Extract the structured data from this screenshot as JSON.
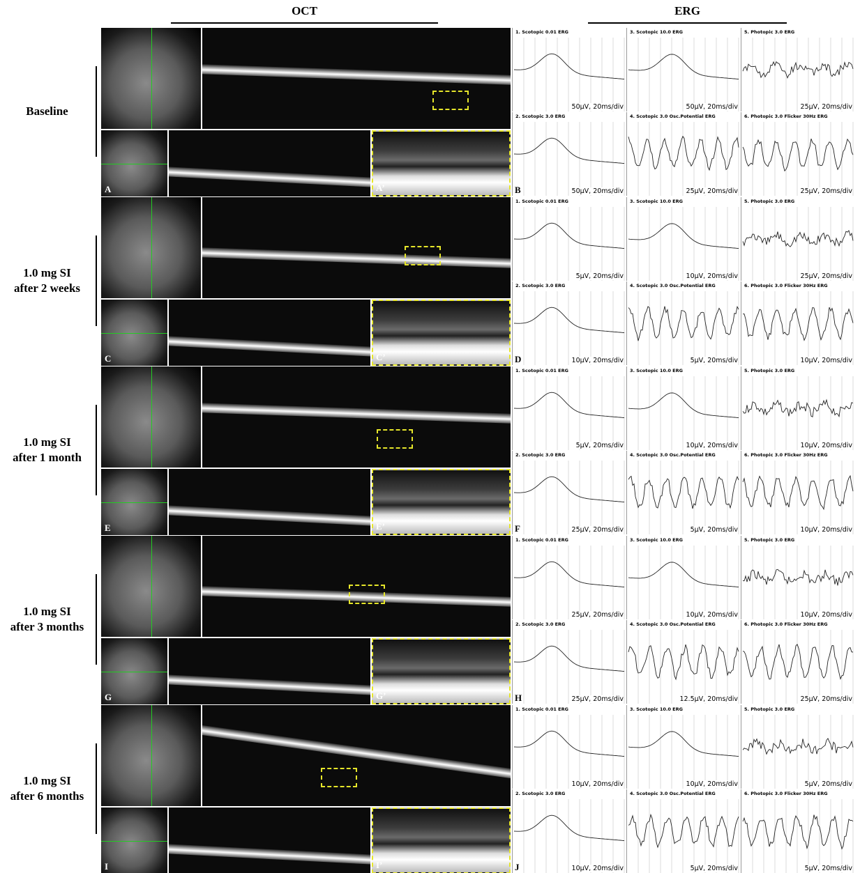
{
  "headers": {
    "oct": "OCT",
    "erg": "ERG"
  },
  "rows": [
    {
      "label": [
        "Baseline"
      ],
      "oct_letters": [
        "A",
        "A’"
      ],
      "erg_letter": "B",
      "erg_panels": [
        {
          "title": "1. Scotopic 0.01 ERG",
          "scale": "50µV, 20ms/div"
        },
        {
          "title": "3. Scotopic 10.0 ERG",
          "scale": "50µV, 20ms/div"
        },
        {
          "title": "5. Photopic 3.0 ERG",
          "scale": "25µV, 20ms/div"
        },
        {
          "title": "2. Scotopic 3.0 ERG",
          "scale": "50µV, 20ms/div"
        },
        {
          "title": "4. Scotopic 3.0 Osc.Potential ERG",
          "scale": "25µV, 20ms/div"
        },
        {
          "title": "6. Photopic 3.0 Flicker 30Hz ERG",
          "scale": "25µV, 20ms/div"
        }
      ]
    },
    {
      "label": [
        "1.0 mg SI",
        "after 2 weeks"
      ],
      "oct_letters": [
        "C",
        "C’"
      ],
      "erg_letter": "D",
      "erg_panels": [
        {
          "title": "1. Scotopic 0.01 ERG",
          "scale": "5µV, 20ms/div"
        },
        {
          "title": "3. Scotopic 10.0 ERG",
          "scale": "10µV, 20ms/div"
        },
        {
          "title": "5. Photopic 3.0 ERG",
          "scale": "25µV, 20ms/div"
        },
        {
          "title": "2. Scotopic 3.0 ERG",
          "scale": "10µV, 20ms/div"
        },
        {
          "title": "4. Scotopic 3.0 Osc.Potential ERG",
          "scale": "5µV, 20ms/div"
        },
        {
          "title": "6. Photopic 3.0 Flicker 30Hz ERG",
          "scale": "10µV, 20ms/div"
        }
      ]
    },
    {
      "label": [
        "1.0 mg SI",
        "after 1 month"
      ],
      "oct_letters": [
        "E",
        "E’"
      ],
      "erg_letter": "F",
      "erg_panels": [
        {
          "title": "1. Scotopic 0.01 ERG",
          "scale": "5µV, 20ms/div"
        },
        {
          "title": "3. Scotopic 10.0 ERG",
          "scale": "10µV, 20ms/div"
        },
        {
          "title": "5. Photopic 3.0 ERG",
          "scale": "10µV, 20ms/div"
        },
        {
          "title": "2. Scotopic 3.0 ERG",
          "scale": "25µV, 20ms/div"
        },
        {
          "title": "4. Scotopic 3.0 Osc.Potential ERG",
          "scale": "5µV, 20ms/div"
        },
        {
          "title": "6. Photopic 3.0 Flicker 30Hz ERG",
          "scale": "10µV, 20ms/div"
        }
      ]
    },
    {
      "label": [
        "1.0 mg SI",
        "after 3 months"
      ],
      "oct_letters": [
        "G",
        "G’"
      ],
      "erg_letter": "H",
      "erg_panels": [
        {
          "title": "1. Scotopic 0.01 ERG",
          "scale": "25µV, 20ms/div"
        },
        {
          "title": "3. Scotopic 10.0 ERG",
          "scale": "10µV, 20ms/div"
        },
        {
          "title": "5. Photopic 3.0 ERG",
          "scale": "10µV, 20ms/div"
        },
        {
          "title": "2. Scotopic 3.0 ERG",
          "scale": "25µV, 20ms/div"
        },
        {
          "title": "4. Scotopic 3.0 Osc.Potential ERG",
          "scale": "12.5µV, 20ms/div"
        },
        {
          "title": "6. Photopic 3.0 Flicker 30Hz ERG",
          "scale": "25µV, 20ms/div"
        }
      ]
    },
    {
      "label": [
        "1.0 mg SI",
        "after 6 months"
      ],
      "oct_letters": [
        "I",
        "I’"
      ],
      "erg_letter": "J",
      "erg_panels": [
        {
          "title": "1. Scotopic 0.01 ERG",
          "scale": "10µV, 20ms/div"
        },
        {
          "title": "3. Scotopic 10.0 ERG",
          "scale": "10µV, 20ms/div"
        },
        {
          "title": "5. Photopic 3.0 ERG",
          "scale": "5µV, 20ms/div"
        },
        {
          "title": "2. Scotopic 3.0 ERG",
          "scale": "10µV, 20ms/div"
        },
        {
          "title": "4. Scotopic 3.0 Osc.Potential ERG",
          "scale": "5µV, 20ms/div"
        },
        {
          "title": "6. Photopic 3.0 Flicker 30Hz ERG",
          "scale": "5µV, 20ms/div"
        }
      ]
    }
  ]
}
